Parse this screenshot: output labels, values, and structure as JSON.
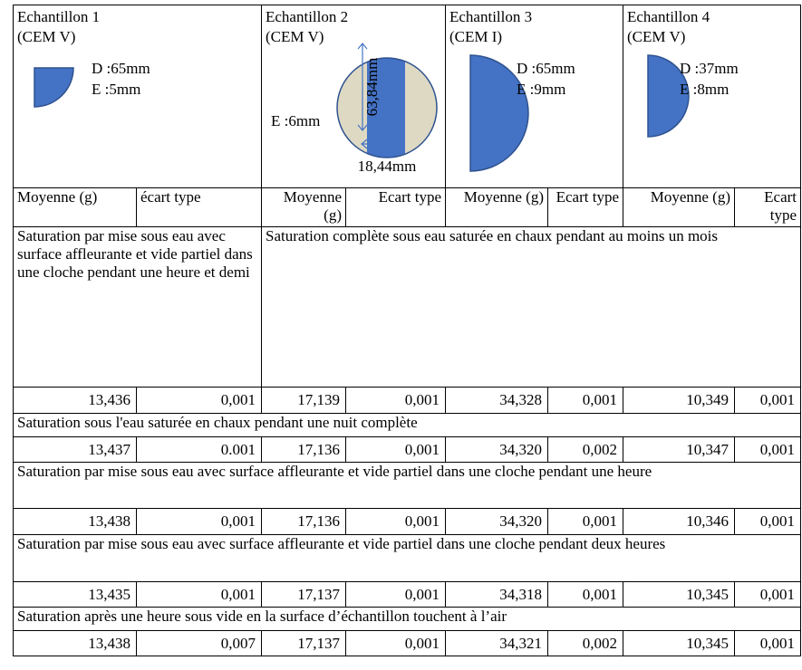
{
  "samples": [
    {
      "name": "Echantillon 1",
      "cement": "(CEM V)",
      "diameter": "D :65mm",
      "thickness": "E :5mm"
    },
    {
      "name": "Echantillon 2",
      "cement": "(CEM V)",
      "thickness": "E :6mm",
      "height_label": "63,84mm",
      "width_label": "18,44mm"
    },
    {
      "name": "Echantillon 3",
      "cement": "(CEM I)",
      "diameter": "D :65mm",
      "thickness": "E :9mm"
    },
    {
      "name": "Echantillon 4",
      "cement": "(CEM V)",
      "diameter": "D :37mm",
      "thickness": "E :8mm"
    }
  ],
  "stat_headers": [
    "Moyenne (g)",
    "écart type",
    "Moyenne (g)",
    "Ecart type",
    "Moyenne (g)",
    "Ecart type",
    "Moyenne (g)",
    "Ecart type"
  ],
  "protocols": [
    {
      "description_sample1": "Saturation par mise sous eau avec surface affleurante et vide partiel dans une cloche pendant une heure et demi",
      "description_others": "Saturation complète sous eau saturée en chaux pendant au moins un mois",
      "values": [
        "13,436",
        "0,001",
        "17,139",
        "0,001",
        "34,328",
        "0,001",
        "10,349",
        "0,001"
      ]
    },
    {
      "description": "Saturation sous l'eau saturée en chaux pendant une nuit complète",
      "values": [
        "13,437",
        "0.001",
        "17,136",
        "0,001",
        "34,320",
        "0,002",
        "10,347",
        "0,001"
      ]
    },
    {
      "description": "Saturation par mise sous eau avec surface affleurante et vide partiel dans une cloche pendant une heure",
      "values": [
        "13,438",
        "0,001",
        "17,136",
        "0,001",
        "34,320",
        "0,001",
        "10,346",
        "0,001"
      ]
    },
    {
      "description": "Saturation par mise sous eau avec surface affleurante et vide partiel dans une cloche pendant deux heures",
      "values": [
        "13,435",
        "0,001",
        "17,137",
        "0,001",
        "34,318",
        "0,001",
        "10,345",
        "0,001"
      ]
    },
    {
      "description": "Saturation après une heure sous vide en la surface d’échantillon touchent à l’air",
      "values": [
        "13,438",
        "0,007",
        "17,137",
        "0,001",
        "34,321",
        "0,002",
        "10,345",
        "0,001"
      ]
    }
  ]
}
